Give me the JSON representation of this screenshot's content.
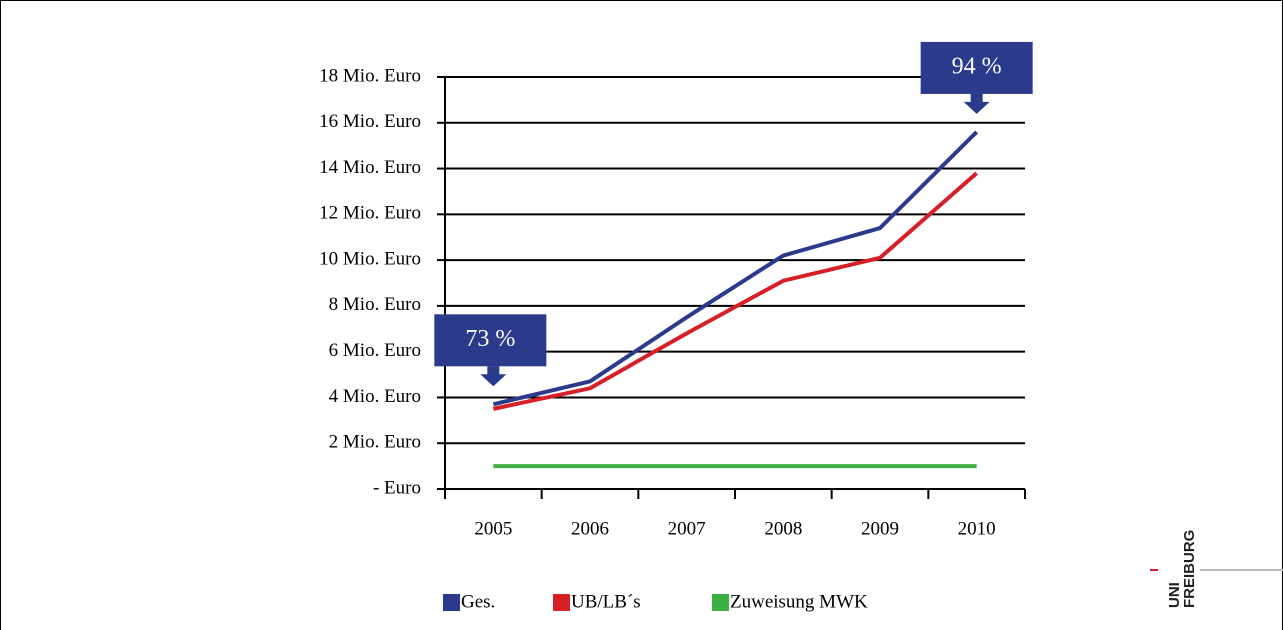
{
  "chart_data": {
    "type": "line",
    "categories": [
      "2005",
      "2006",
      "2007",
      "2008",
      "2009",
      "2010"
    ],
    "series": [
      {
        "name": "Ges.",
        "color": "#2b3a8a",
        "values": [
          3.7,
          4.7,
          7.5,
          10.2,
          11.4,
          15.6
        ]
      },
      {
        "name": "UB/LB´s",
        "color": "#d71f26",
        "values": [
          3.5,
          4.4,
          6.8,
          9.1,
          10.1,
          13.8
        ]
      },
      {
        "name": "Zuweisung MWK",
        "color": "#3cb043",
        "values": [
          1,
          1,
          1,
          1,
          1,
          1
        ]
      }
    ],
    "ylim": [
      0,
      18
    ],
    "yticks": [
      {
        "value": 0,
        "label": "- Euro"
      },
      {
        "value": 2,
        "label": "2 Mio. Euro"
      },
      {
        "value": 4,
        "label": "4 Mio. Euro"
      },
      {
        "value": 6,
        "label": "6 Mio. Euro"
      },
      {
        "value": 8,
        "label": "8 Mio. Euro"
      },
      {
        "value": 10,
        "label": "10 Mio. Euro"
      },
      {
        "value": 12,
        "label": "12 Mio. Euro"
      },
      {
        "value": 14,
        "label": "14 Mio. Euro"
      },
      {
        "value": 16,
        "label": "16 Mio. Euro"
      },
      {
        "value": 18,
        "label": "18 Mio. Euro"
      }
    ],
    "grid": true,
    "legend": "bottom",
    "annotations": [
      {
        "text": "73 %",
        "category": 0
      },
      {
        "text": "94 %",
        "category": 5
      }
    ],
    "logo": [
      "UNI",
      "FREIBURG"
    ]
  }
}
